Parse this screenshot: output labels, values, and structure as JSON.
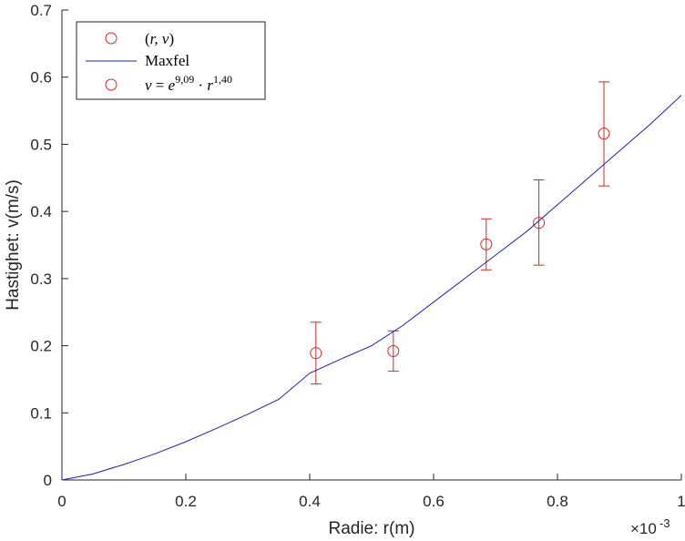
{
  "chart_data": {
    "type": "scatter",
    "xlabel": "Radie: r(m)",
    "ylabel": "Hastighet: v(m/s)",
    "x_exponent_label": "×10",
    "x_exponent": "-3",
    "xlim": [
      0,
      1
    ],
    "ylim": [
      0,
      0.7
    ],
    "xticks": [
      0,
      0.2,
      0.4,
      0.6,
      0.8,
      1
    ],
    "xtick_labels": [
      "0",
      "0.2",
      "0.4",
      "0.6",
      "0.8",
      "1"
    ],
    "yticks": [
      0,
      0.1,
      0.2,
      0.3,
      0.4,
      0.5,
      0.6,
      0.7
    ],
    "ytick_labels": [
      "0",
      "0.1",
      "0.2",
      "0.3",
      "0.4",
      "0.5",
      "0.6",
      "0.7"
    ],
    "grid": false,
    "legend_position": "top-left",
    "legend": [
      {
        "label_open": "(",
        "label_main": "r, v",
        "label_close": ")",
        "marker": "circle",
        "color": "#d62728"
      },
      {
        "label": "Maxfel",
        "marker": "line",
        "color": "#1f1fb4"
      },
      {
        "label_lhs": "v",
        "label_eq": " = ",
        "label_base": "e",
        "label_exp1": "9,09",
        "label_dot": " · ",
        "label_r": "r",
        "label_exp2": "1,40",
        "marker": "circle",
        "color": "#d62728"
      }
    ],
    "series": [
      {
        "name": "(r, v)",
        "kind": "scatter-errorbar",
        "color": "#d62728",
        "x": [
          0.41,
          0.535,
          0.685,
          0.77,
          0.875
        ],
        "y": [
          0.189,
          0.192,
          0.351,
          0.383,
          0.516
        ],
        "y_low": [
          0.143,
          0.162,
          0.313,
          0.32,
          0.438
        ],
        "y_high": [
          0.235,
          0.222,
          0.389,
          0.447,
          0.593
        ]
      },
      {
        "name": "Maxfel",
        "kind": "line",
        "color": "#1f1fb4",
        "x": [
          0,
          0.05,
          0.1,
          0.15,
          0.2,
          0.25,
          0.3,
          0.35,
          0.4,
          0.45,
          0.5,
          0.55,
          0.6,
          0.65,
          0.7,
          0.75,
          0.8,
          0.85,
          0.9,
          0.95,
          1.0
        ],
        "y": [
          0,
          0.009,
          0.023,
          0.039,
          0.057,
          0.077,
          0.098,
          0.12,
          0.159,
          0.18,
          0.2,
          0.23,
          0.265,
          0.3,
          0.335,
          0.37,
          0.41,
          0.45,
          0.49,
          0.53,
          0.573
        ]
      }
    ]
  }
}
